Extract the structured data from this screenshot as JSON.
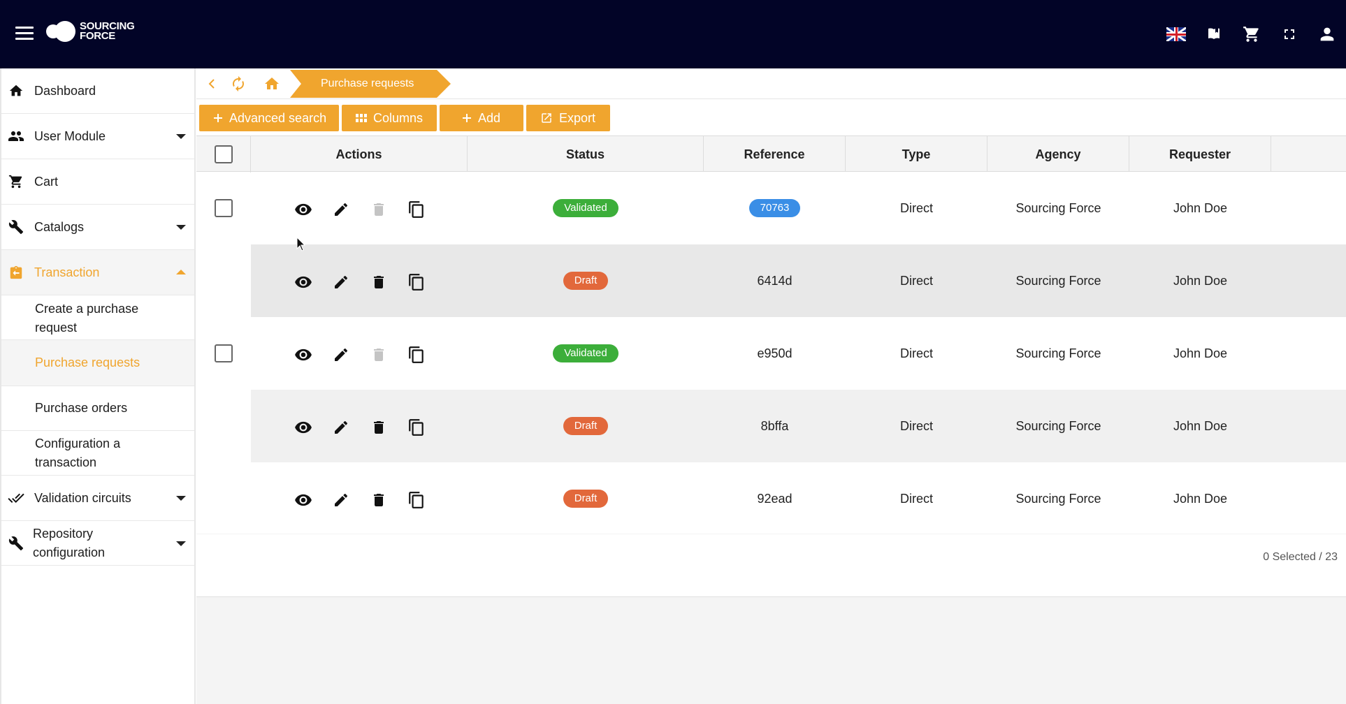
{
  "app": {
    "logo_line1": "SOURCING",
    "logo_line2": "FORCE"
  },
  "topbar": {
    "icons": [
      "flag-uk-icon",
      "book-icon",
      "cart-icon",
      "fullscreen-icon",
      "account-icon"
    ]
  },
  "sidebar": {
    "items": [
      {
        "label": "Dashboard",
        "icon": "home-icon"
      },
      {
        "label": "User Module",
        "icon": "people-icon"
      },
      {
        "label": "Cart",
        "icon": "cart-icon"
      },
      {
        "label": "Catalogs",
        "icon": "wrench-icon"
      },
      {
        "label": "Transaction",
        "icon": "transaction-icon"
      },
      {
        "label": "Validation circuits",
        "icon": "double-check-icon"
      },
      {
        "label": "Repository configuration",
        "icon": "wrench-icon"
      }
    ],
    "sub_items": [
      {
        "label": "Create a purchase request"
      },
      {
        "label": "Purchase requests"
      },
      {
        "label": "Purchase orders"
      },
      {
        "label": "Configuration a transaction"
      }
    ],
    "accent": "#f0a52e"
  },
  "breadcrumb": {
    "current": "Purchase requests"
  },
  "toolbar": {
    "advanced_search": "Advanced search",
    "columns": "Columns",
    "add": "Add",
    "export": "Export"
  },
  "table": {
    "headers": {
      "actions": "Actions",
      "status": "Status",
      "reference": "Reference",
      "type": "Type",
      "agency": "Agency",
      "requester": "Requester"
    },
    "rows": [
      {
        "status": "Validated",
        "reference": "70763",
        "type": "Direct",
        "agency": "Sourcing Force",
        "requester": "John Doe"
      },
      {
        "status": "Draft",
        "reference": "6414d",
        "type": "Direct",
        "agency": "Sourcing Force",
        "requester": "John Doe"
      },
      {
        "status": "Validated",
        "reference": "e950d",
        "type": "Direct",
        "agency": "Sourcing Force",
        "requester": "John Doe"
      },
      {
        "status": "Draft",
        "reference": "8bffa",
        "type": "Direct",
        "agency": "Sourcing Force",
        "requester": "John Doe"
      },
      {
        "status": "Draft",
        "reference": "92ead",
        "type": "Direct",
        "agency": "Sourcing Force",
        "requester": "John Doe"
      }
    ],
    "status_colors": {
      "Validated": "#3cae3a",
      "Draft": "#e2683b",
      "reference_highlight": "#3a8ee6"
    }
  },
  "footer": {
    "selection": "0 Selected / 23"
  }
}
